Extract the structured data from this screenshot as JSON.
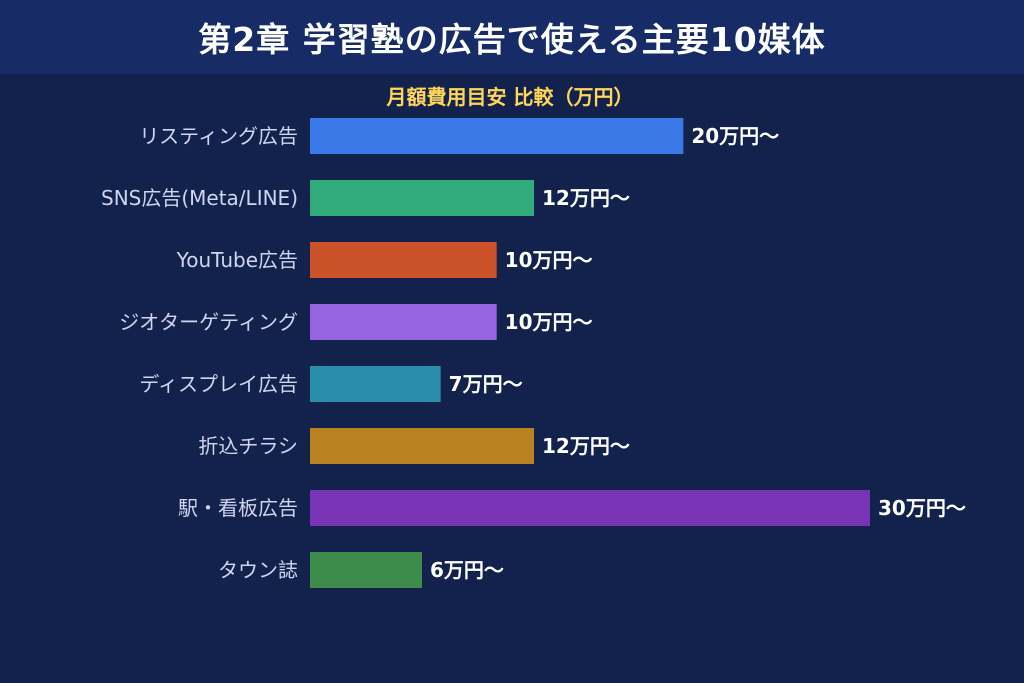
{
  "header": {
    "title": "第2章 学習塾の広告で使える主要10媒体"
  },
  "chart_data": {
    "type": "bar",
    "orientation": "horizontal",
    "title": "月額費用目安 比較（万円）",
    "categories": [
      "リスティング広告",
      "SNS広告(Meta/LINE)",
      "YouTube広告",
      "ジオターゲティング",
      "ディスプレイ広告",
      "折込チラシ",
      "駅・看板広告",
      "タウン誌"
    ],
    "values": [
      20,
      12,
      10,
      10,
      7,
      12,
      30,
      6
    ],
    "value_labels": [
      "20万円〜",
      "12万円〜",
      "10万円〜",
      "10万円〜",
      "7万円〜",
      "12万円〜",
      "30万円〜",
      "6万円〜"
    ],
    "colors": [
      "#3a78e6",
      "#31ab7b",
      "#cb5129",
      "#9564df",
      "#2a8eab",
      "#b8821e",
      "#7734b4",
      "#3e8c4c"
    ],
    "xlim": [
      0,
      30
    ],
    "grid": false,
    "legend": "none"
  }
}
